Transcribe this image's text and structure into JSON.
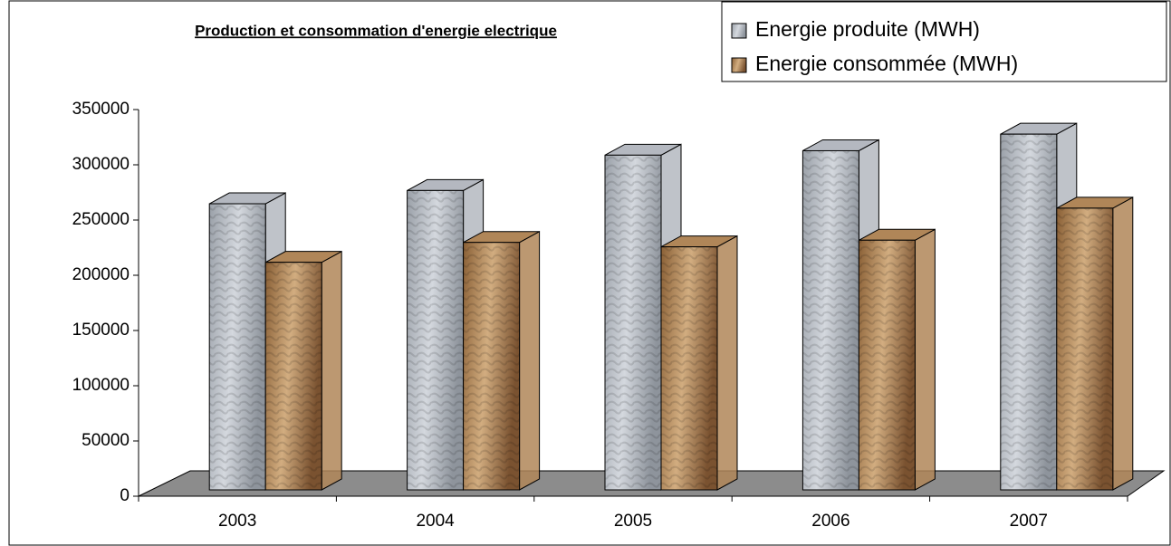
{
  "chart_data": {
    "type": "bar3d",
    "title": "Production et consommation d'energie electrique",
    "categories": [
      "2003",
      "2004",
      "2005",
      "2006",
      "2007"
    ],
    "series": [
      {
        "name": "Energie produite (MWH)",
        "color": "#b4b8c0",
        "values": [
          259000,
          271000,
          303000,
          307000,
          322000
        ]
      },
      {
        "name": "Energie consommée (MWH)",
        "color": "#b08658",
        "values": [
          206000,
          224000,
          220000,
          226000,
          255000
        ]
      }
    ],
    "ylim": [
      0,
      350000
    ],
    "yticks": [
      0,
      50000,
      100000,
      150000,
      200000,
      250000,
      300000,
      350000
    ],
    "legend": "top-right"
  }
}
